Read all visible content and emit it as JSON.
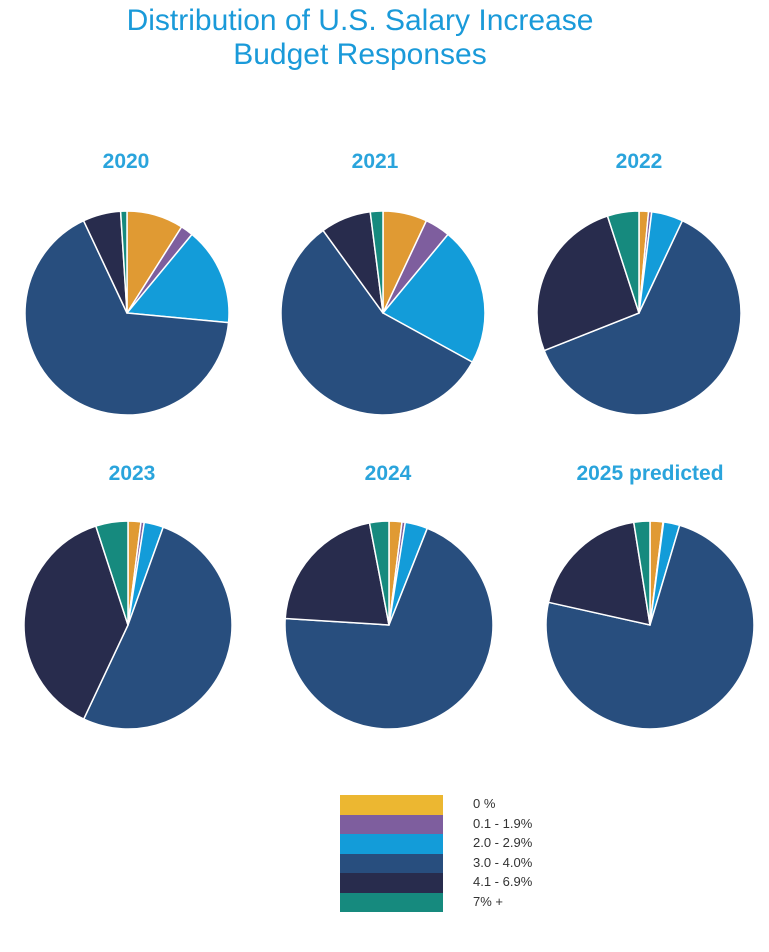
{
  "title_line1": "Distribution of U.S. Salary Increase",
  "title_line2": "Budget Responses",
  "legend": [
    {
      "label": "0 %",
      "color": "#ecb731"
    },
    {
      "label": "0.1 - 1.9%",
      "color": "#7e5e9e"
    },
    {
      "label": "2.0 - 2.9%",
      "color": "#139cd9"
    },
    {
      "label": "3.0 - 4.0%",
      "color": "#284e7e"
    },
    {
      "label": "4.1 - 6.9%",
      "color": "#282c4d"
    },
    {
      "label": "7% +",
      "color": "#168a7e"
    }
  ],
  "chart_data": [
    {
      "type": "pie",
      "title": "2020",
      "categories": [
        "0 %",
        "0.1 - 1.9%",
        "2.0 - 2.9%",
        "3.0 - 4.0%",
        "4.1 - 6.9%",
        "7% +"
      ],
      "values": [
        9,
        2,
        15.5,
        66.5,
        6,
        1
      ],
      "colors": [
        "#e09a33",
        "#7e5e9e",
        "#139cd9",
        "#284e7e",
        "#282c4d",
        "#168a7e"
      ]
    },
    {
      "type": "pie",
      "title": "2021",
      "categories": [
        "0 %",
        "0.1 - 1.9%",
        "2.0 - 2.9%",
        "3.0 - 4.0%",
        "4.1 - 6.9%",
        "7% +"
      ],
      "values": [
        7,
        4,
        22,
        57,
        8,
        2
      ],
      "colors": [
        "#e09a33",
        "#7e5e9e",
        "#139cd9",
        "#284e7e",
        "#282c4d",
        "#168a7e"
      ]
    },
    {
      "type": "pie",
      "title": "2022",
      "categories": [
        "0 %",
        "0.1 - 1.9%",
        "2.0 - 2.9%",
        "3.0 - 4.0%",
        "4.1 - 6.9%",
        "7% +"
      ],
      "values": [
        1.5,
        0.5,
        5,
        62,
        26,
        5
      ],
      "colors": [
        "#e09a33",
        "#7e5e9e",
        "#139cd9",
        "#284e7e",
        "#282c4d",
        "#168a7e"
      ]
    },
    {
      "type": "pie",
      "title": "2023",
      "categories": [
        "0 %",
        "0.1 - 1.9%",
        "2.0 - 2.9%",
        "3.0 - 4.0%",
        "4.1 - 6.9%",
        "7% +"
      ],
      "values": [
        2,
        0.5,
        3,
        51.5,
        38,
        5
      ],
      "colors": [
        "#e09a33",
        "#7e5e9e",
        "#139cd9",
        "#284e7e",
        "#282c4d",
        "#168a7e"
      ]
    },
    {
      "type": "pie",
      "title": "2024",
      "categories": [
        "0 %",
        "0.1 - 1.9%",
        "2.0 - 2.9%",
        "3.0 - 4.0%",
        "4.1 - 6.9%",
        "7% +"
      ],
      "values": [
        2,
        0.5,
        3.5,
        70,
        21,
        3
      ],
      "colors": [
        "#e09a33",
        "#7e5e9e",
        "#139cd9",
        "#284e7e",
        "#282c4d",
        "#168a7e"
      ]
    },
    {
      "type": "pie",
      "title": "2025 predicted",
      "categories": [
        "0 %",
        "0.1 - 1.9%",
        "2.0 - 2.9%",
        "3.0 - 4.0%",
        "4.1 - 6.9%",
        "7% +"
      ],
      "values": [
        2,
        0.1,
        2.5,
        73.9,
        19,
        2.5
      ],
      "colors": [
        "#e09a33",
        "#7e5e9e",
        "#139cd9",
        "#284e7e",
        "#282c4d",
        "#168a7e"
      ]
    }
  ]
}
